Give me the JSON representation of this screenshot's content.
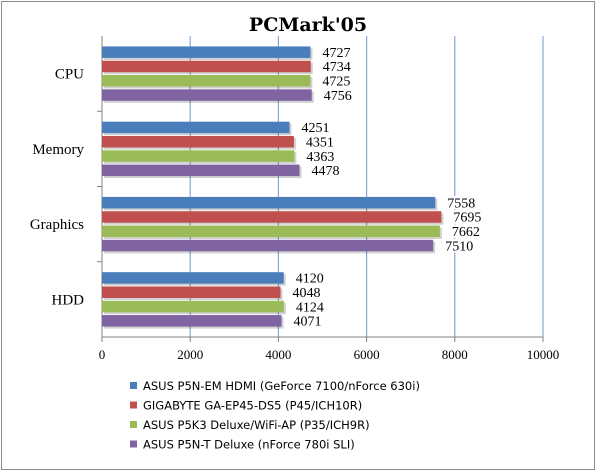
{
  "chart_data": {
    "type": "bar",
    "orientation": "horizontal",
    "title": "PCMark'05",
    "categories": [
      "CPU",
      "Memory",
      "Graphics",
      "HDD"
    ],
    "series": [
      {
        "name": "ASUS P5N-EM HDMI (GeForce 7100/nForce 630i)",
        "color": "#4a7ebb",
        "values": [
          4727,
          4251,
          7558,
          4120
        ]
      },
      {
        "name": "GIGABYTE GA-EP45-DS5 (P45/ICH10R)",
        "color": "#c0504d",
        "values": [
          4734,
          4351,
          7695,
          4048
        ]
      },
      {
        "name": "ASUS P5K3 Deluxe/WiFi-AP (P35/ICH9R)",
        "color": "#9bbb59",
        "values": [
          4725,
          4363,
          7662,
          4124
        ]
      },
      {
        "name": "ASUS P5N-T Deluxe (nForce 780i SLI)",
        "color": "#8064a2",
        "values": [
          4756,
          4478,
          7510,
          4071
        ]
      }
    ],
    "xlim": [
      0,
      10000
    ],
    "xticks": [
      "0",
      "2000",
      "4000",
      "6000",
      "8000",
      "10000"
    ],
    "grid": true,
    "legend_position": "bottom",
    "colors": {
      "grid": "#86a9d9",
      "axis": "#808080"
    }
  }
}
